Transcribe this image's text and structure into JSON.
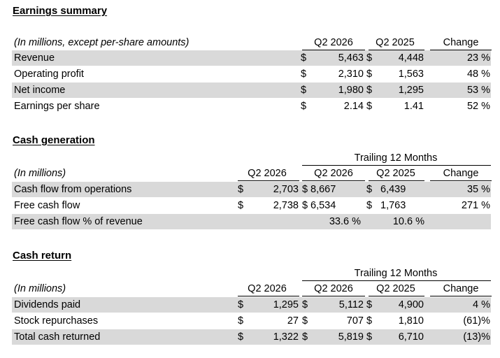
{
  "earnings": {
    "title": "Earnings summary",
    "header": {
      "caption": "(In millions, except per-share amounts)",
      "col1": "Q2 2026",
      "col2": "Q2 2025",
      "change": "Change"
    },
    "rows": [
      {
        "label": "Revenue",
        "q2_2026": "5,463",
        "q2_2025": "4,448",
        "change": "23 %"
      },
      {
        "label": "Operating profit",
        "q2_2026": "2,310",
        "q2_2025": "1,563",
        "change": "48 %"
      },
      {
        "label": "Net income",
        "q2_2026": "1,980",
        "q2_2025": "1,295",
        "change": "53 %"
      },
      {
        "label": "Earnings per share",
        "q2_2026": "2.14",
        "q2_2025": "1.41",
        "change": "52 %"
      }
    ]
  },
  "cash_generation": {
    "title": "Cash generation",
    "trailing": "Trailing 12 Months",
    "header": {
      "caption": "(In millions)",
      "q": "Q2 2026",
      "t1": "Q2 2026",
      "t2": "Q2 2025",
      "change": "Change"
    },
    "rows": [
      {
        "label": "Cash flow from operations",
        "q": "2,703",
        "t1": "8,667",
        "t2": "6,439",
        "change": "35 %"
      },
      {
        "label": "Free cash flow",
        "q": "2,738",
        "t1": "6,534",
        "t2": "1,763",
        "change": "271 %"
      },
      {
        "label": "Free cash flow % of revenue",
        "t1": "33.6 %",
        "t2": "10.6 %"
      }
    ]
  },
  "cash_return": {
    "title": "Cash return",
    "trailing": "Trailing 12 Months",
    "header": {
      "caption": "(In millions)",
      "q": "Q2 2026",
      "t1": "Q2 2026",
      "t2": "Q2 2025",
      "change": "Change"
    },
    "rows": [
      {
        "label": "Dividends paid",
        "q": "1,295",
        "t1": "5,112",
        "t2": "4,900",
        "change": "4 %"
      },
      {
        "label": "Stock repurchases",
        "q": "27",
        "t1": "707",
        "t2": "1,810",
        "change": "(61)%"
      },
      {
        "label": "Total cash returned",
        "q": "1,322",
        "t1": "5,819",
        "t2": "6,710",
        "change": "(13)%"
      }
    ]
  },
  "currency_symbol": "$"
}
